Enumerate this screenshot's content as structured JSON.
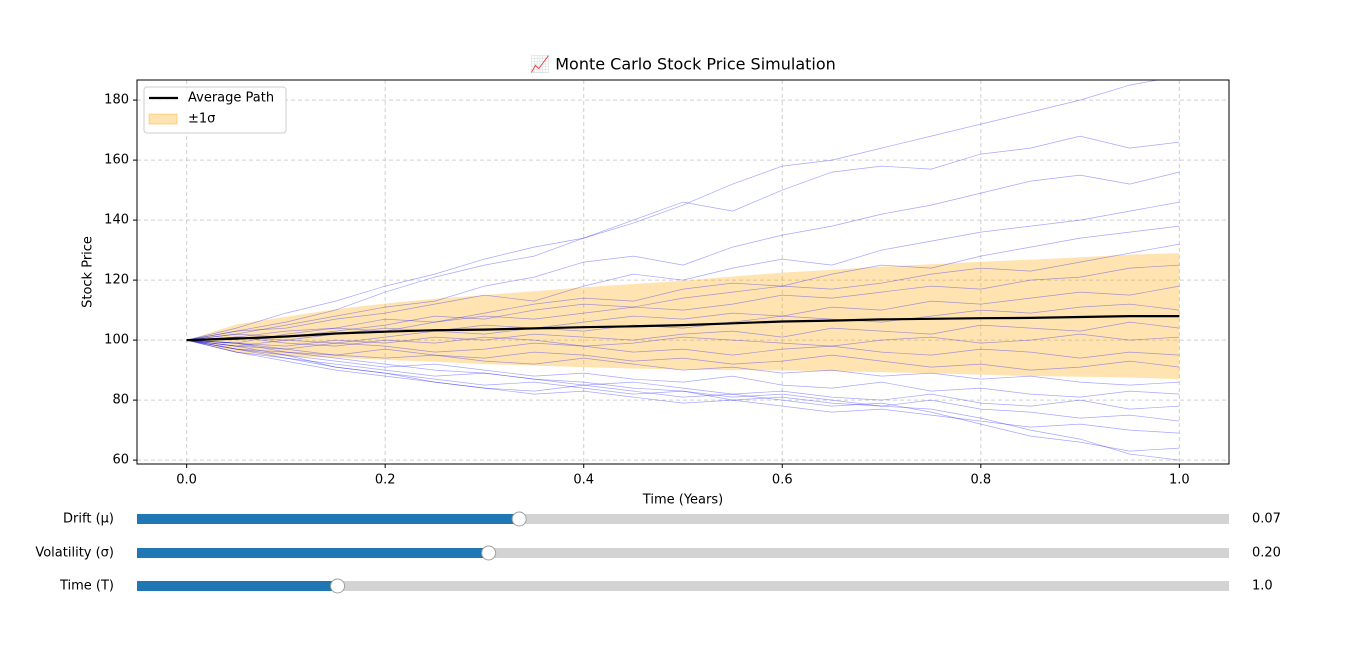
{
  "chart_data": {
    "type": "line",
    "title": "📈 Monte Carlo Stock Price Simulation",
    "x_label": "Time (Years)",
    "y_label": "Stock Price",
    "xlim": [
      -0.05,
      1.05
    ],
    "ylim": [
      58.7,
      186.7
    ],
    "xticks": [
      {
        "value": 0,
        "label": "0.0"
      },
      0.2,
      0.4,
      0.6,
      0.8,
      {
        "value": 1,
        "label": "1.0"
      }
    ],
    "yticks": [
      60,
      80,
      100,
      120,
      140,
      160,
      180
    ],
    "grid": true,
    "legend": "upper left",
    "x": [
      0,
      0.05,
      0.1,
      0.15,
      0.2,
      0.25,
      0.3,
      0.35,
      0.4,
      0.45,
      0.5,
      0.55,
      0.6,
      0.65,
      0.7,
      0.75,
      0.8,
      0.85,
      0.9,
      0.95,
      1
    ],
    "path_color": "#0000ff",
    "paths": [
      [
        100,
        104,
        109,
        113,
        118,
        122,
        127,
        131,
        134,
        139,
        145,
        152,
        158,
        160,
        164,
        168,
        172,
        176,
        180,
        185,
        188
      ],
      [
        100,
        103,
        106,
        110,
        116,
        121,
        125,
        128,
        134,
        140,
        146,
        143,
        150,
        156,
        158,
        157,
        162,
        164,
        168,
        164,
        166
      ],
      [
        100,
        102,
        105,
        108,
        111,
        113,
        118,
        121,
        126,
        128,
        125,
        131,
        135,
        138,
        142,
        145,
        149,
        153,
        155,
        152,
        156
      ],
      [
        100,
        103,
        104,
        107,
        109,
        112,
        115,
        113,
        118,
        122,
        120,
        124,
        127,
        125,
        130,
        133,
        136,
        138,
        140,
        143,
        146
      ],
      [
        100,
        101,
        103,
        104,
        107,
        106,
        109,
        112,
        114,
        113,
        117,
        119,
        118,
        122,
        125,
        124,
        128,
        131,
        134,
        136,
        138
      ],
      [
        100,
        102,
        101,
        103,
        105,
        108,
        107,
        110,
        112,
        111,
        114,
        116,
        118,
        117,
        119,
        122,
        124,
        123,
        126,
        129,
        132
      ],
      [
        100,
        99,
        102,
        104,
        103,
        106,
        108,
        107,
        109,
        111,
        110,
        112,
        115,
        114,
        116,
        118,
        117,
        120,
        121,
        124,
        125
      ],
      [
        100,
        101,
        100,
        102,
        104,
        103,
        105,
        104,
        106,
        108,
        107,
        109,
        108,
        111,
        110,
        113,
        112,
        114,
        116,
        115,
        118
      ],
      [
        100,
        98,
        100,
        99,
        101,
        103,
        102,
        104,
        103,
        105,
        104,
        106,
        108,
        107,
        106,
        108,
        110,
        109,
        111,
        112,
        110
      ],
      [
        100,
        99,
        98,
        100,
        99,
        101,
        100,
        102,
        101,
        100,
        102,
        103,
        101,
        104,
        103,
        102,
        105,
        104,
        103,
        106,
        104
      ],
      [
        100,
        101,
        99,
        98,
        100,
        99,
        101,
        100,
        98,
        99,
        101,
        100,
        99,
        98,
        100,
        101,
        99,
        100,
        102,
        100,
        101
      ],
      [
        100,
        98,
        97,
        99,
        98,
        96,
        97,
        99,
        98,
        96,
        97,
        95,
        97,
        98,
        96,
        95,
        97,
        96,
        94,
        96,
        95
      ],
      [
        100,
        97,
        96,
        95,
        97,
        95,
        94,
        96,
        95,
        93,
        94,
        92,
        93,
        95,
        93,
        91,
        92,
        90,
        91,
        93,
        91
      ],
      [
        100,
        99,
        97,
        95,
        94,
        95,
        93,
        92,
        94,
        92,
        90,
        91,
        89,
        90,
        88,
        89,
        87,
        88,
        86,
        85,
        86
      ],
      [
        100,
        97,
        95,
        93,
        91,
        92,
        90,
        88,
        89,
        87,
        86,
        88,
        85,
        84,
        86,
        83,
        84,
        82,
        81,
        83,
        82
      ],
      [
        100,
        96,
        94,
        92,
        90,
        88,
        89,
        87,
        85,
        86,
        84,
        82,
        83,
        81,
        80,
        82,
        79,
        78,
        80,
        77,
        78
      ],
      [
        100,
        98,
        95,
        91,
        89,
        87,
        85,
        86,
        84,
        82,
        83,
        80,
        81,
        79,
        78,
        80,
        77,
        76,
        74,
        75,
        73
      ],
      [
        100,
        96,
        93,
        90,
        88,
        86,
        84,
        82,
        83,
        81,
        79,
        80,
        78,
        76,
        77,
        75,
        73,
        71,
        72,
        70,
        69
      ],
      [
        100,
        97,
        94,
        91,
        89,
        86,
        84,
        83,
        85,
        83,
        81,
        82,
        80,
        78,
        79,
        76,
        72,
        68,
        66,
        63,
        64
      ],
      [
        100,
        99,
        96,
        94,
        92,
        90,
        89,
        87,
        86,
        84,
        83,
        81,
        82,
        80,
        78,
        77,
        74,
        70,
        67,
        62,
        60
      ]
    ],
    "band": {
      "name": "±1σ",
      "color": "#ffa500",
      "upper": [
        100,
        105.2,
        107.8,
        110.3,
        112.2,
        113.8,
        115.0,
        116.3,
        117.6,
        118.7,
        119.8,
        121.2,
        122.5,
        123.4,
        124.5,
        125.3,
        126.1,
        126.8,
        127.6,
        128.5,
        129.0
      ],
      "lower": [
        100,
        95.8,
        94.6,
        94.1,
        93.4,
        92.8,
        92.0,
        91.5,
        91.0,
        90.5,
        90.2,
        90.0,
        89.9,
        89.6,
        89.3,
        88.9,
        88.5,
        88.0,
        87.8,
        87.5,
        87.0
      ]
    },
    "average": {
      "name": "Average Path",
      "color": "#000000",
      "values": [
        100,
        100.5,
        101.2,
        102.2,
        102.8,
        103.3,
        103.5,
        103.9,
        104.3,
        104.6,
        105.0,
        105.6,
        106.2,
        106.5,
        106.9,
        107.1,
        107.3,
        107.4,
        107.7,
        108.0,
        108.0
      ]
    },
    "sliders": [
      {
        "label": "Drift (μ)",
        "value": 0.07,
        "value_label": "0.07",
        "valmin": 0,
        "valmax": 0.2
      },
      {
        "label": "Volatility (σ)",
        "value": 0.2,
        "value_label": "0.20",
        "valmin": 0.01,
        "valmax": 0.6
      },
      {
        "label": "Time (T)",
        "value": 1,
        "value_label": "1.0",
        "valmin": 0.1,
        "valmax": 5
      }
    ]
  }
}
